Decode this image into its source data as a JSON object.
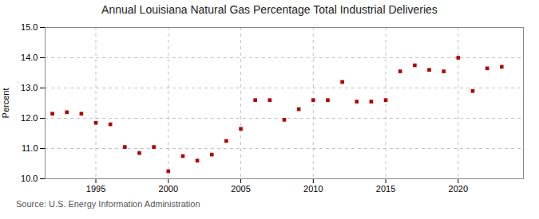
{
  "chart_data": {
    "type": "scatter",
    "title": "Annual Louisiana Natural Gas Percentage Total Industrial Deliveries",
    "ylabel": "Percent",
    "source": "Source: U.S. Energy Information Administration",
    "color": "#b30000",
    "marker": "square",
    "grid": true,
    "xlim": [
      1991.5,
      2024.5
    ],
    "ylim": [
      10.0,
      15.0
    ],
    "xticks": [
      1995,
      2000,
      2005,
      2010,
      2015,
      2020
    ],
    "yticks": [
      {
        "value": 10.0,
        "label": "10.0"
      },
      {
        "value": 11.0,
        "label": "11.0"
      },
      {
        "value": 12.0,
        "label": "12.0"
      },
      {
        "value": 13.0,
        "label": "13.0"
      },
      {
        "value": 14.0,
        "label": "14.0"
      },
      {
        "value": 15.0,
        "label": "15.0"
      }
    ],
    "x": [
      1992,
      1993,
      1994,
      1995,
      1996,
      1997,
      1998,
      1999,
      2000,
      2001,
      2002,
      2003,
      2004,
      2005,
      2006,
      2007,
      2008,
      2009,
      2010,
      2011,
      2012,
      2013,
      2014,
      2015,
      2016,
      2017,
      2018,
      2019,
      2020,
      2021,
      2022,
      2023
    ],
    "values": [
      12.15,
      12.2,
      12.15,
      11.85,
      11.8,
      11.05,
      10.85,
      11.05,
      10.25,
      10.75,
      10.6,
      10.8,
      11.25,
      11.65,
      12.6,
      12.6,
      11.95,
      12.3,
      12.6,
      12.6,
      13.2,
      12.55,
      12.55,
      12.6,
      13.55,
      13.75,
      13.6,
      13.55,
      14.0,
      12.9,
      13.65,
      13.7
    ]
  }
}
